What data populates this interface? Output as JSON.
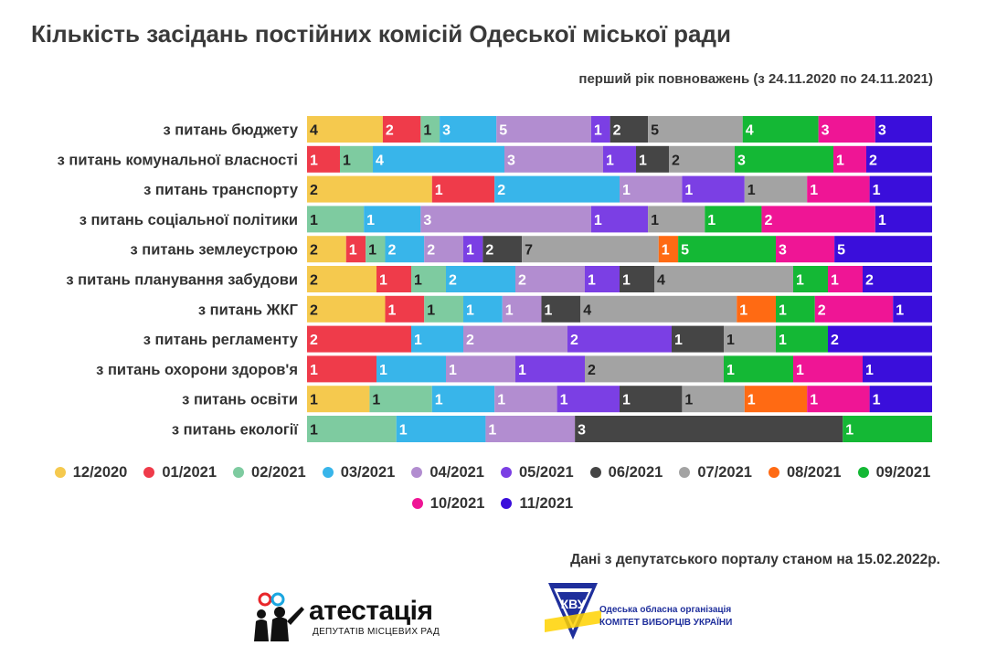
{
  "title": "Кількість засідань постійних комісій Одеської міської ради",
  "subtitle": "перший рік повноважень (з 24.11.2020 по 24.11.2021)",
  "source": "Дані з депутатського порталу станом на 15.02.2022р.",
  "logos": {
    "atestatsiya": {
      "word": "атестація",
      "sub": "ДЕПУТАТІВ МІСЦЕВИХ РАД"
    },
    "kvu": {
      "line1": "Одеська обласна організація",
      "line2": "КОМІТЕТ ВИБОРЦІВ УКРАЇНИ",
      "emblem_text": "КВУ"
    }
  },
  "chart_data": {
    "type": "bar",
    "orientation": "horizontal",
    "stacked": true,
    "legend_position": "bottom",
    "categories": [
      "з питань бюджету",
      "з питань комунальної власності",
      "з питань транспорту",
      "з питань соціальної політики",
      "з питань землеустрою",
      "з питань планування забудови",
      "з питань ЖКГ",
      "з питань регламенту",
      "з питань охорони здоров'я",
      "з питань освіти",
      "з питань екології"
    ],
    "series": [
      {
        "name": "12/2020",
        "color": "#F5C94E",
        "values": [
          4,
          0,
          2,
          0,
          2,
          2,
          2,
          0,
          0,
          1,
          0
        ]
      },
      {
        "name": "01/2021",
        "color": "#EF3B4A",
        "values": [
          2,
          1,
          1,
          0,
          1,
          1,
          1,
          2,
          1,
          0,
          0
        ]
      },
      {
        "name": "02/2021",
        "color": "#7ECBA0",
        "values": [
          1,
          1,
          0,
          1,
          1,
          1,
          1,
          0,
          0,
          1,
          1
        ]
      },
      {
        "name": "03/2021",
        "color": "#38B5EA",
        "values": [
          3,
          4,
          2,
          1,
          2,
          2,
          1,
          1,
          1,
          1,
          1
        ]
      },
      {
        "name": "04/2021",
        "color": "#B28DD0",
        "values": [
          5,
          3,
          1,
          3,
          2,
          2,
          1,
          2,
          1,
          1,
          1
        ]
      },
      {
        "name": "05/2021",
        "color": "#7B3FE4",
        "values": [
          1,
          1,
          1,
          1,
          1,
          1,
          0,
          2,
          1,
          1,
          0
        ]
      },
      {
        "name": "06/2021",
        "color": "#454545",
        "values": [
          2,
          1,
          0,
          0,
          2,
          1,
          1,
          1,
          0,
          1,
          3
        ]
      },
      {
        "name": "07/2021",
        "color": "#A3A3A3",
        "values": [
          5,
          2,
          1,
          1,
          7,
          4,
          4,
          1,
          2,
          1,
          0
        ]
      },
      {
        "name": "08/2021",
        "color": "#FF6A13",
        "values": [
          0,
          0,
          0,
          0,
          1,
          0,
          1,
          0,
          0,
          1,
          0
        ]
      },
      {
        "name": "09/2021",
        "color": "#14B835",
        "values": [
          4,
          3,
          0,
          1,
          5,
          1,
          1,
          1,
          1,
          0,
          1
        ]
      },
      {
        "name": "10/2021",
        "color": "#EF1595",
        "values": [
          3,
          1,
          1,
          2,
          3,
          1,
          2,
          0,
          1,
          1,
          0
        ]
      },
      {
        "name": "11/2021",
        "color": "#3A0EDB",
        "values": [
          3,
          2,
          1,
          1,
          5,
          2,
          1,
          2,
          1,
          1,
          0
        ]
      }
    ]
  }
}
